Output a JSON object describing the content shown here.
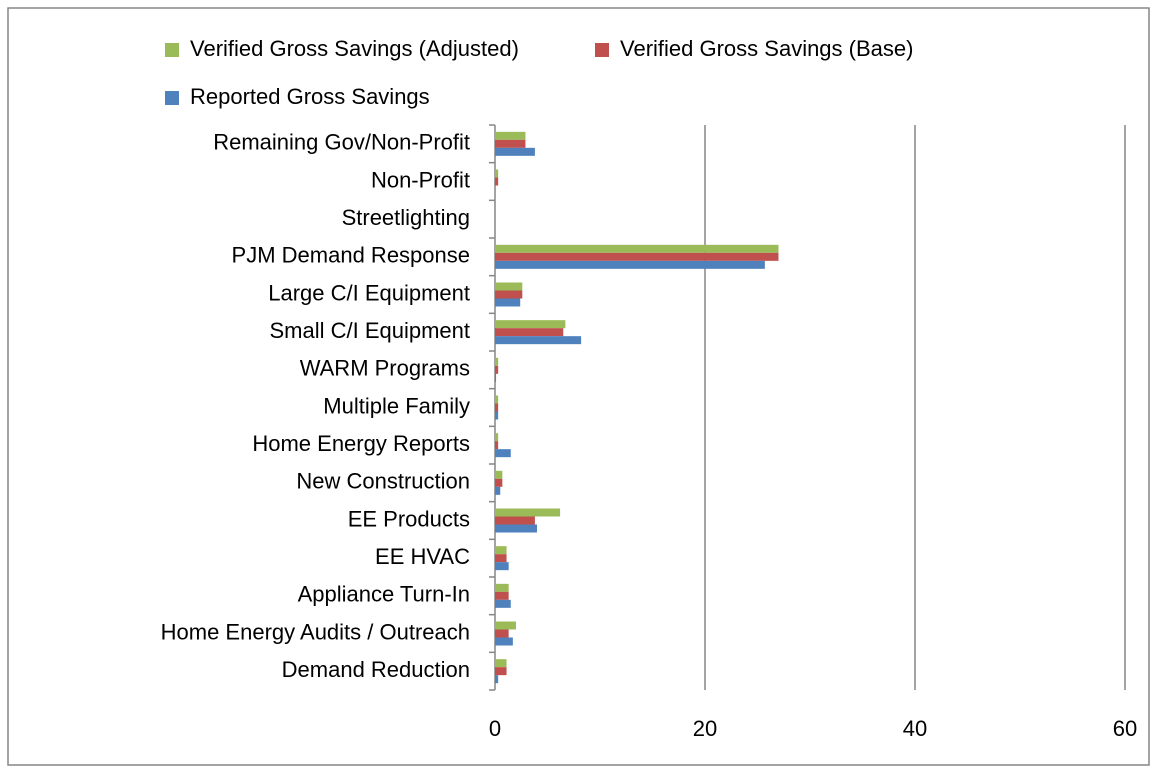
{
  "chart_data": {
    "type": "bar",
    "orientation": "horizontal",
    "categories": [
      "Remaining Gov/Non-Profit",
      "Non-Profit",
      "Streetlighting",
      "PJM Demand Response",
      "Large  C/I Equipment",
      "Small C/I Equipment",
      "WARM Programs",
      "Multiple Family",
      "Home Energy Reports",
      "New Construction",
      "EE Products",
      "EE HVAC",
      "Appliance Turn-In",
      "Home Energy Audits / Outreach",
      "Demand Reduction"
    ],
    "series": [
      {
        "name": "Verified Gross Savings (Adjusted)",
        "color": "#9bbb59",
        "values": [
          2.9,
          0.3,
          0,
          27.0,
          2.6,
          6.7,
          0.3,
          0.3,
          0.3,
          0.7,
          6.2,
          1.1,
          1.3,
          2.0,
          1.1
        ]
      },
      {
        "name": "Verified Gross Savings (Base)",
        "color": "#c0504d",
        "values": [
          2.9,
          0.3,
          0,
          27.0,
          2.6,
          6.5,
          0.3,
          0.3,
          0.3,
          0.7,
          3.8,
          1.1,
          1.3,
          1.3,
          1.1
        ]
      },
      {
        "name": "Reported Gross Savings",
        "color": "#4f81bd",
        "values": [
          3.8,
          0,
          0,
          25.7,
          2.4,
          8.2,
          0.1,
          0.3,
          1.5,
          0.5,
          4.0,
          1.3,
          1.5,
          1.7,
          0.3
        ]
      }
    ],
    "xlim": [
      0,
      60
    ],
    "xticks": [
      0,
      20,
      40,
      60
    ],
    "grid": true,
    "legend": "top"
  }
}
